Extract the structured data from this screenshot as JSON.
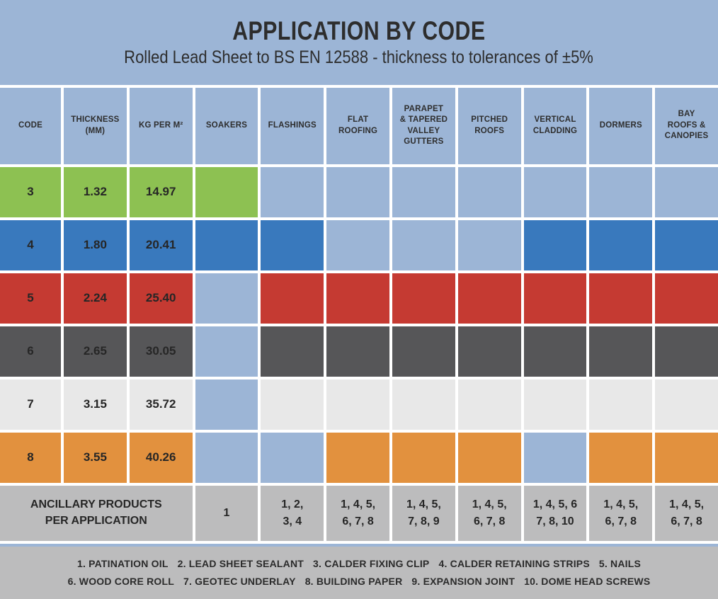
{
  "colors": {
    "background_blue": "#9cb5d6",
    "grid_line_white": "#ffffff",
    "band_gray": "#bcbcbd",
    "text_dark": "#262626"
  },
  "chart_data": {
    "type": "table",
    "title": "APPLICATION BY CODE",
    "subtitle": "Rolled Lead Sheet to BS EN 12588 - thickness to tolerances of ±5%",
    "columns": [
      "CODE",
      "THICKNESS\n(MM)",
      "KG PER M²",
      "SOAKERS",
      "FLASHINGS",
      "FLAT\nROOFING",
      "PARAPET\n& TAPERED\nVALLEY\nGUTTERS",
      "PITCHED\nROOFS",
      "VERTICAL\nCLADDING",
      "DORMERS",
      "BAY\nROOFS &\nCANOPIES"
    ],
    "application_keys": [
      "soakers",
      "flashings",
      "flat-roofing",
      "parapet-tapered-valley-gutters",
      "pitched-roofs",
      "vertical-cladding",
      "dormers",
      "bay-roofs-canopies"
    ],
    "rows": [
      {
        "code": "3",
        "thickness_mm": "1.32",
        "kg_per_m2": "14.97",
        "color": "#8dc152",
        "applications": [
          1,
          0,
          0,
          0,
          0,
          0,
          0,
          0
        ]
      },
      {
        "code": "4",
        "thickness_mm": "1.80",
        "kg_per_m2": "20.41",
        "color": "#3979bd",
        "applications": [
          1,
          1,
          0,
          0,
          0,
          1,
          1,
          1
        ]
      },
      {
        "code": "5",
        "thickness_mm": "2.24",
        "kg_per_m2": "25.40",
        "color": "#c53a32",
        "applications": [
          0,
          1,
          1,
          1,
          1,
          1,
          1,
          1
        ]
      },
      {
        "code": "6",
        "thickness_mm": "2.65",
        "kg_per_m2": "30.05",
        "color": "#565658",
        "applications": [
          0,
          1,
          1,
          1,
          1,
          1,
          1,
          1
        ]
      },
      {
        "code": "7",
        "thickness_mm": "3.15",
        "kg_per_m2": "35.72",
        "color": "#e8e8e8",
        "applications": [
          0,
          1,
          1,
          1,
          1,
          1,
          1,
          1
        ]
      },
      {
        "code": "8",
        "thickness_mm": "3.55",
        "kg_per_m2": "40.26",
        "color": "#e2913e",
        "applications": [
          0,
          0,
          1,
          1,
          1,
          0,
          1,
          1
        ]
      }
    ],
    "ancillary": {
      "label": "ANCILLARY PRODUCTS\nPER APPLICATION",
      "values": [
        "1",
        "1, 2,\n3, 4",
        "1, 4, 5,\n6, 7, 8",
        "1, 4, 5,\n7, 8, 9",
        "1, 4, 5,\n6, 7, 8",
        "1, 4, 5, 6\n7, 8, 10",
        "1, 4, 5,\n6, 7, 8",
        "1, 4, 5,\n6, 7, 8"
      ]
    },
    "footnotes": {
      "line1": [
        "1. PATINATION OIL",
        "2. LEAD SHEET SEALANT",
        "3. CALDER FIXING CLIP",
        "4. CALDER RETAINING STRIPS",
        "5. NAILS"
      ],
      "line2": [
        "6. WOOD CORE ROLL",
        "7. GEOTEC UNDERLAY",
        "8. BUILDING PAPER",
        "9. EXPANSION JOINT",
        "10. DOME HEAD SCREWS"
      ]
    }
  }
}
